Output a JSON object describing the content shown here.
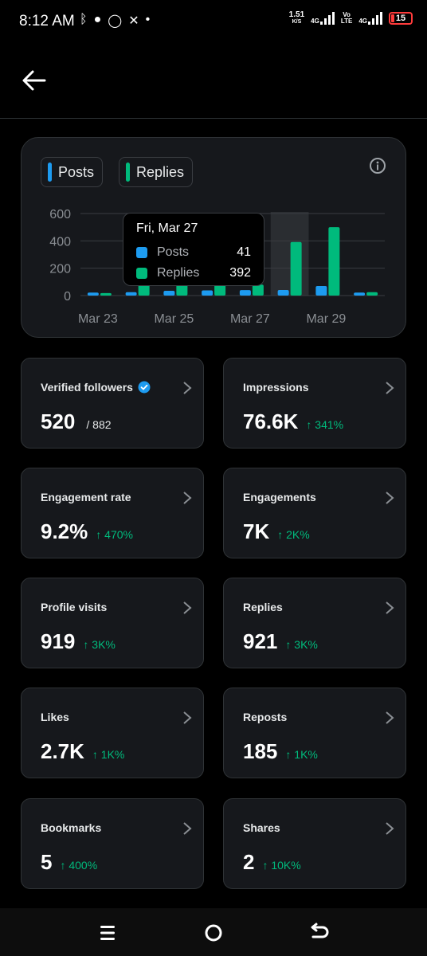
{
  "status_bar": {
    "time": "8:12 AM",
    "net_speed_value": "1.51",
    "net_speed_unit": "K/S",
    "network_1": "4G",
    "network_2_top": "Vo",
    "network_2_bottom": "LTE",
    "network_3": "4G",
    "battery": "15",
    "left_icons": [
      "data-saver-icon",
      "chat-icon",
      "whatsapp-icon",
      "x-icon",
      "dot-icon"
    ]
  },
  "chart_card": {
    "legend": [
      {
        "label": "Posts",
        "color": "#1d9bf0"
      },
      {
        "label": "Replies",
        "color": "#00ba7c"
      }
    ],
    "tooltip": {
      "title": "Fri, Mar 27",
      "rows": [
        {
          "label": "Posts",
          "value": "41",
          "color": "#1d9bf0"
        },
        {
          "label": "Replies",
          "value": "392",
          "color": "#00ba7c"
        }
      ]
    }
  },
  "chart_data": {
    "type": "bar",
    "x_tick_labels": [
      "Mar 23",
      "Mar 25",
      "Mar 27",
      "Mar 29"
    ],
    "y_tick_labels": [
      "0",
      "200",
      "400",
      "600"
    ],
    "ylim": [
      0,
      600
    ],
    "series": [
      {
        "name": "Posts",
        "color": "#1d9bf0",
        "values": [
          22,
          25,
          35,
          38,
          40,
          41,
          70,
          22
        ]
      },
      {
        "name": "Replies",
        "color": "#00ba7c",
        "values": [
          18,
          80,
          80,
          80,
          80,
          392,
          500,
          25
        ]
      }
    ],
    "highlighted_index": 5,
    "grid": true
  },
  "metrics": [
    {
      "label": "Verified followers",
      "value": "520",
      "sub": "/ 882",
      "change": "",
      "verified": true
    },
    {
      "label": "Impressions",
      "value": "76.6K",
      "sub": "",
      "change": "↑ 341%"
    },
    {
      "label": "Engagement rate",
      "value": "9.2%",
      "sub": "",
      "change": "↑ 470%"
    },
    {
      "label": "Engagements",
      "value": "7K",
      "sub": "",
      "change": "↑ 2K%"
    },
    {
      "label": "Profile visits",
      "value": "919",
      "sub": "",
      "change": "↑ 3K%"
    },
    {
      "label": "Replies",
      "value": "921",
      "sub": "",
      "change": "↑ 3K%"
    },
    {
      "label": "Likes",
      "value": "2.7K",
      "sub": "",
      "change": "↑ 1K%"
    },
    {
      "label": "Reposts",
      "value": "185",
      "sub": "",
      "change": "↑ 1K%"
    },
    {
      "label": "Bookmarks",
      "value": "5",
      "sub": "",
      "change": "↑ 400%"
    },
    {
      "label": "Shares",
      "value": "2",
      "sub": "",
      "change": "↑ 10K%"
    }
  ],
  "colors": {
    "background": "#000000",
    "card": "#16181c",
    "border": "#2f3336",
    "positive": "#00ba7c",
    "posts": "#1d9bf0",
    "replies": "#00ba7c"
  }
}
